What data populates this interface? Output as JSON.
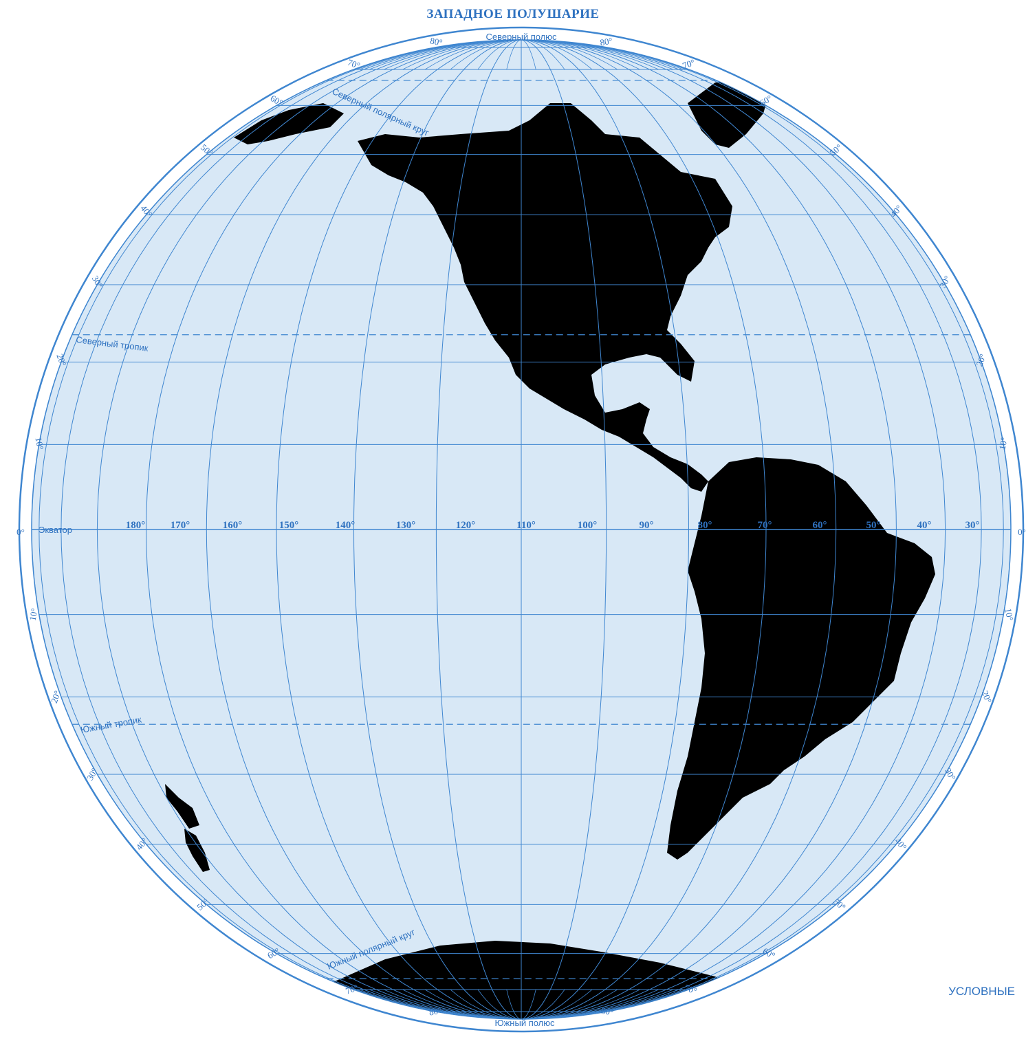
{
  "map": {
    "title": "ЗАПАДНОЕ ПОЛУШАРИЕ",
    "legend_label": "УСЛОВНЫЕ",
    "north_pole_label": "Северный полюс",
    "south_pole_label": "Южный полюс",
    "equator_label": "Экватор",
    "tropic_north_label": "Северный тропик",
    "tropic_south_label": "Южный тропик",
    "arctic_circle_label": "Северный полярный круг",
    "antarctic_circle_label": "Южный полярный круг",
    "longitude_labels": [
      "180°",
      "170°",
      "160°",
      "150°",
      "140°",
      "130°",
      "120°",
      "110°",
      "100°",
      "90°",
      "80°",
      "70°",
      "60°",
      "50°",
      "40°",
      "30°"
    ],
    "latitude_labels": [
      "80°",
      "70°",
      "60°",
      "50°",
      "40°",
      "30°",
      "20°",
      "10°",
      "0°"
    ],
    "colors": {
      "ocean": "#d8e8f6",
      "grid": "#3f86d0",
      "rim": "#3f86d0",
      "land": "#ffffff",
      "text": "#2f72c0"
    }
  }
}
